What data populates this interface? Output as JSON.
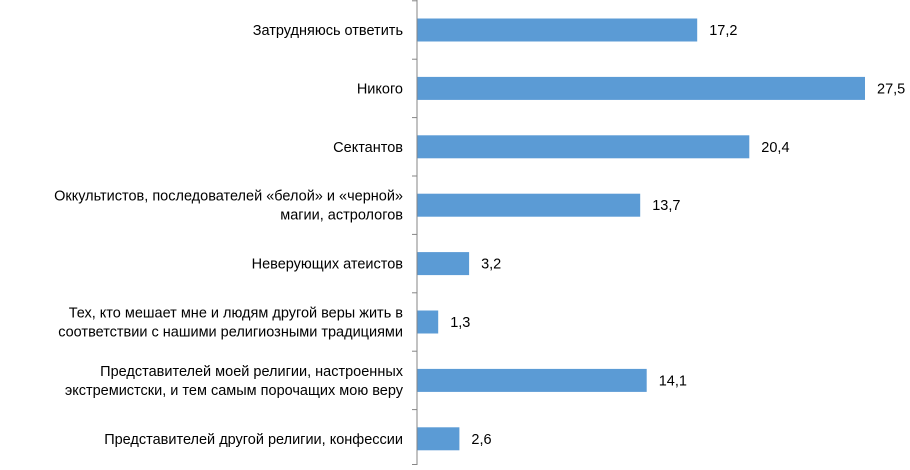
{
  "colors": {
    "bar": "#5b9bd5",
    "axis": "#868686",
    "text": "#000000"
  },
  "chart_data": {
    "type": "bar",
    "orientation": "horizontal",
    "title": "",
    "xlabel": "",
    "ylabel": "",
    "grid": false,
    "legend": "none",
    "categories": [
      "Затрудняюсь ответить",
      "Никого",
      "Сектантов",
      "Оккультистов, последователей «белой» и «черной» магии, астрологов",
      "Неверующих атеистов",
      "Тех, кто мешает мне и людям другой веры жить в соответствии с нашими религиозными традициями",
      "Представителей моей религии, настроенных экстремистски, и тем самым порочащих мою веру",
      "Представителей другой религии, конфессии"
    ],
    "values": [
      17.2,
      27.5,
      20.4,
      13.7,
      3.2,
      1.3,
      14.1,
      2.6
    ],
    "value_labels": [
      "17,2",
      "27,5",
      "20,4",
      "13,7",
      "3,2",
      "1,3",
      "14,1",
      "2,6"
    ],
    "xlim": [
      0,
      27.5
    ]
  }
}
